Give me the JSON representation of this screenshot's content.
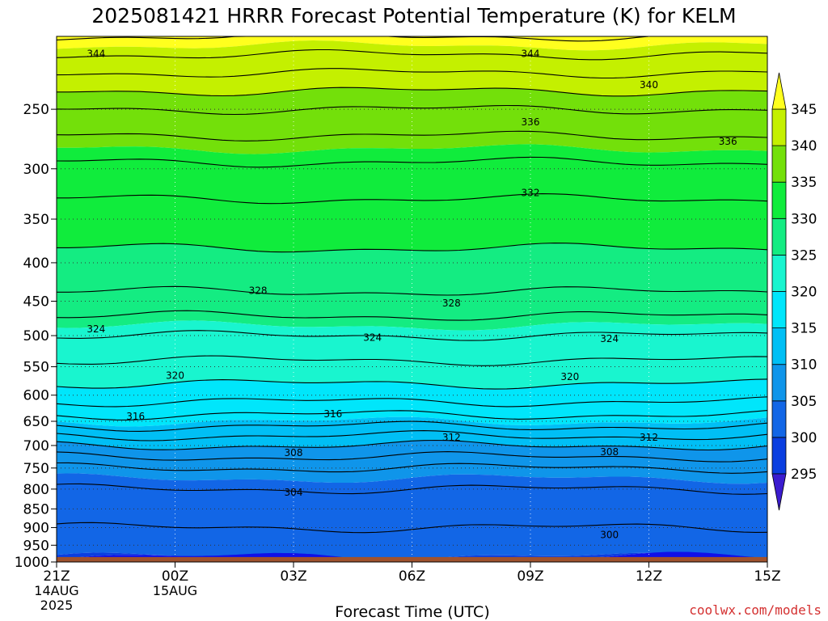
{
  "title": "2025081421 HRRR Forecast Potential Temperature (K) for KELM",
  "xlabel": "Forecast Time (UTC)",
  "credit": "coolwx.com/models",
  "credit_color": "#d43030",
  "ground_color": "#a0522d",
  "chart_data": {
    "type": "heatmap",
    "title": "2025081421 HRRR Forecast Potential Temperature (K) for KELM",
    "xlabel": "Forecast Time (UTC)",
    "ylabel": "",
    "y_scale": "log-pressure (hPa, reversed)",
    "x_range_hours": [
      0,
      18
    ],
    "y_range_hpa": [
      1000,
      200
    ],
    "surface_pressure_hpa": 985,
    "grid": "dotted",
    "x_ticks": [
      {
        "hour": 0,
        "label": "21Z",
        "date1": "14AUG",
        "date2": "2025"
      },
      {
        "hour": 3,
        "label": "00Z",
        "date1": "15AUG",
        "date2": ""
      },
      {
        "hour": 6,
        "label": "03Z",
        "date1": "",
        "date2": ""
      },
      {
        "hour": 9,
        "label": "06Z",
        "date1": "",
        "date2": ""
      },
      {
        "hour": 12,
        "label": "09Z",
        "date1": "",
        "date2": ""
      },
      {
        "hour": 15,
        "label": "12Z",
        "date1": "",
        "date2": ""
      },
      {
        "hour": 18,
        "label": "15Z",
        "date1": "",
        "date2": ""
      }
    ],
    "y_ticks": [
      250,
      300,
      350,
      400,
      450,
      500,
      550,
      600,
      650,
      700,
      750,
      800,
      850,
      900,
      950,
      1000
    ],
    "colorbar": {
      "levels": [
        295,
        300,
        305,
        310,
        315,
        320,
        325,
        330,
        335,
        340,
        345
      ],
      "colors": [
        "#1010e8",
        "#0a3ee0",
        "#1266e6",
        "#0f95ea",
        "#00bff5",
        "#00e6fb",
        "#19f5cf",
        "#14ec82",
        "#10ec3c",
        "#73e00a",
        "#c4f000",
        "#ffff1e"
      ],
      "under_color": "#3b1ccf",
      "over_color": "#ffff1e"
    },
    "theta_profile_K": [
      {
        "p": 200,
        "theta": 346
      },
      {
        "p": 250,
        "theta": 338
      },
      {
        "p": 300,
        "theta": 333.5
      },
      {
        "p": 350,
        "theta": 331
      },
      {
        "p": 400,
        "theta": 329.5
      },
      {
        "p": 450,
        "theta": 327.5
      },
      {
        "p": 500,
        "theta": 324
      },
      {
        "p": 550,
        "theta": 321.5
      },
      {
        "p": 600,
        "theta": 319
      },
      {
        "p": 650,
        "theta": 315
      },
      {
        "p": 700,
        "theta": 310
      },
      {
        "p": 750,
        "theta": 306
      },
      {
        "p": 800,
        "theta": 304
      },
      {
        "p": 850,
        "theta": 303
      },
      {
        "p": 900,
        "theta": 302
      },
      {
        "p": 950,
        "theta": 301
      },
      {
        "p": 985,
        "theta": 300.5
      }
    ],
    "contour_interval_K": 2,
    "contour_labels": [
      {
        "value": 344,
        "hour": 1.0,
        "p": 211
      },
      {
        "value": 344,
        "hour": 12.0,
        "p": 211
      },
      {
        "value": 340,
        "hour": 15.0,
        "p": 232
      },
      {
        "value": 336,
        "hour": 12.0,
        "p": 260
      },
      {
        "value": 336,
        "hour": 17.0,
        "p": 276
      },
      {
        "value": 332,
        "hour": 12.0,
        "p": 323
      },
      {
        "value": 328,
        "hour": 5.1,
        "p": 436
      },
      {
        "value": 328,
        "hour": 10.0,
        "p": 453
      },
      {
        "value": 324,
        "hour": 1.0,
        "p": 490
      },
      {
        "value": 324,
        "hour": 8.0,
        "p": 503
      },
      {
        "value": 324,
        "hour": 14.0,
        "p": 505
      },
      {
        "value": 320,
        "hour": 3.0,
        "p": 565
      },
      {
        "value": 320,
        "hour": 13.0,
        "p": 567
      },
      {
        "value": 316,
        "hour": 2.0,
        "p": 640
      },
      {
        "value": 316,
        "hour": 7.0,
        "p": 636
      },
      {
        "value": 312,
        "hour": 10.0,
        "p": 683
      },
      {
        "value": 312,
        "hour": 15.0,
        "p": 683
      },
      {
        "value": 308,
        "hour": 6.0,
        "p": 716
      },
      {
        "value": 308,
        "hour": 14.0,
        "p": 714
      },
      {
        "value": 304,
        "hour": 6.0,
        "p": 808
      },
      {
        "value": 300,
        "hour": 14.0,
        "p": 920
      }
    ]
  }
}
